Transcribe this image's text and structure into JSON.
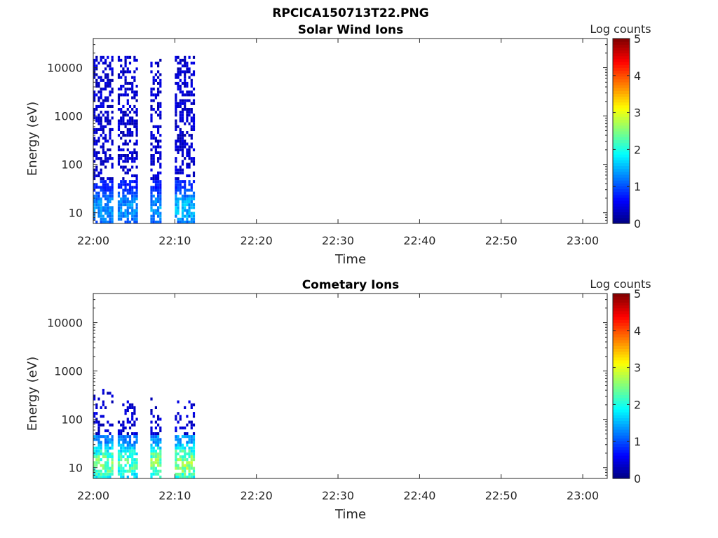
{
  "figure": {
    "title": "RPCICA150713T22.PNG"
  },
  "chart_data": [
    {
      "type": "heatmap",
      "title": "Solar Wind Ions",
      "xlabel": "Time",
      "ylabel": "Energy (eV)",
      "y_scale": "log",
      "xlim": [
        "22:00",
        "23:03"
      ],
      "ylim": [
        6,
        40000
      ],
      "x_ticks": [
        "22:00",
        "22:10",
        "22:20",
        "22:30",
        "22:40",
        "22:50",
        "23:00"
      ],
      "y_ticks": [
        "10",
        "100",
        "1000",
        "10000"
      ],
      "colorbar": {
        "label": "Log counts",
        "range": [
          0,
          5
        ],
        "ticks": [
          "0",
          "1",
          "2",
          "3",
          "4",
          "5"
        ],
        "colormap": "jet"
      },
      "bursts": [
        {
          "x_start": "22:00",
          "x_end": "22:02",
          "max_energy": 18000,
          "low_energy_peak_log_counts": 1.6,
          "high_energy_log_counts": 0.2
        },
        {
          "x_start": "22:03",
          "x_end": "22:05",
          "max_energy": 18000,
          "low_energy_peak_log_counts": 1.6,
          "high_energy_log_counts": 0.2
        },
        {
          "x_start": "22:07",
          "x_end": "22:08",
          "max_energy": 15000,
          "low_energy_peak_log_counts": 1.6,
          "high_energy_log_counts": 0.2
        },
        {
          "x_start": "22:10",
          "x_end": "22:12",
          "max_energy": 18000,
          "low_energy_peak_log_counts": 1.8,
          "high_energy_log_counts": 0.2
        }
      ]
    },
    {
      "type": "heatmap",
      "title": "Cometary Ions",
      "xlabel": "Time",
      "ylabel": "Energy (eV)",
      "y_scale": "log",
      "xlim": [
        "22:00",
        "23:03"
      ],
      "ylim": [
        6,
        40000
      ],
      "x_ticks": [
        "22:00",
        "22:10",
        "22:20",
        "22:30",
        "22:40",
        "22:50",
        "23:00"
      ],
      "y_ticks": [
        "10",
        "100",
        "1000",
        "10000"
      ],
      "colorbar": {
        "label": "Log counts",
        "range": [
          0,
          5
        ],
        "ticks": [
          "0",
          "1",
          "2",
          "3",
          "4",
          "5"
        ],
        "colormap": "jet"
      },
      "bursts": [
        {
          "x_start": "22:00",
          "x_end": "22:02",
          "max_energy": 400,
          "low_energy_peak_log_counts": 2.8,
          "high_energy_log_counts": 0.2
        },
        {
          "x_start": "22:03",
          "x_end": "22:05",
          "max_energy": 300,
          "low_energy_peak_log_counts": 2.6,
          "high_energy_log_counts": 0.2
        },
        {
          "x_start": "22:07",
          "x_end": "22:08",
          "max_energy": 300,
          "low_energy_peak_log_counts": 2.9,
          "high_energy_log_counts": 0.2
        },
        {
          "x_start": "22:10",
          "x_end": "22:12",
          "max_energy": 250,
          "low_energy_peak_log_counts": 3.0,
          "high_energy_log_counts": 0.2
        }
      ]
    }
  ]
}
